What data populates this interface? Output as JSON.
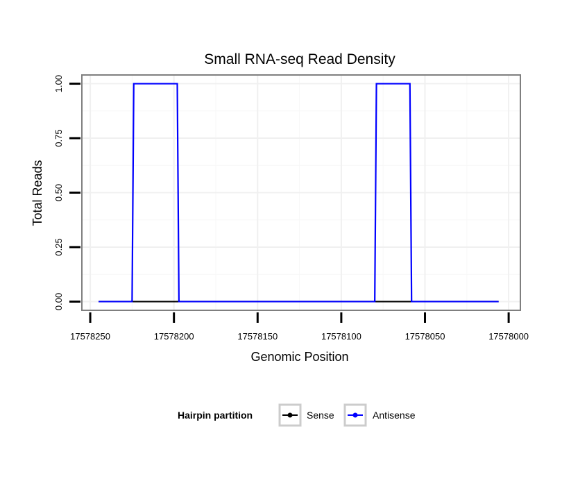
{
  "chart_data": {
    "type": "line",
    "title": "Small RNA-seq Read Density",
    "xlabel": "Genomic Position",
    "ylabel": "Total Reads",
    "x_reversed": true,
    "xlim": [
      17578255,
      17577993
    ],
    "ylim": [
      -0.04,
      1.04
    ],
    "x_ticks": [
      17578250,
      17578200,
      17578150,
      17578100,
      17578050,
      17578000
    ],
    "x_tick_labels": [
      "17578250",
      "17578200",
      "17578150",
      "17578100",
      "17578050",
      "17578000"
    ],
    "y_ticks": [
      0,
      0.25,
      0.5,
      0.75,
      1.0
    ],
    "y_tick_labels": [
      "0.00",
      "0.25",
      "0.50",
      "0.75",
      "1.00"
    ],
    "grid": true,
    "legend_position": "bottom",
    "legend": {
      "title": "Hairpin partition",
      "entries": [
        {
          "name": "Sense",
          "color": "#000000"
        },
        {
          "name": "Antisense",
          "color": "#0000ff"
        }
      ]
    },
    "series": [
      {
        "name": "Sense",
        "color": "#000000",
        "x": [
          17578245,
          17578006
        ],
        "y": [
          0,
          0
        ]
      },
      {
        "name": "Antisense",
        "color": "#0000ff",
        "x": [
          17578245,
          17578225,
          17578224,
          17578198,
          17578197,
          17578080,
          17578079,
          17578059,
          17578058,
          17578006
        ],
        "y": [
          0,
          0,
          1,
          1,
          0,
          0,
          1,
          1,
          0,
          0
        ]
      }
    ]
  }
}
